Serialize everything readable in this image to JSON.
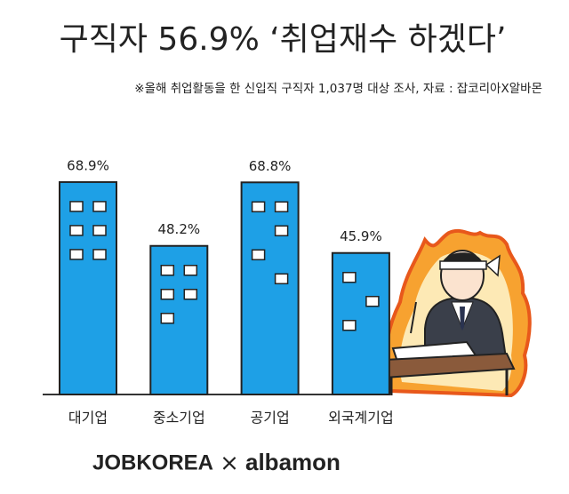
{
  "chart_data": {
    "type": "bar",
    "title": "구직자 56.9% ‘취업재수 하겠다’",
    "subtitle": "※올해 취업활동을 한 신입직 구직자 1,037명 대상 조사, 자료 : 잡코리아X알바몬",
    "categories": [
      "대기업",
      "중소기업",
      "공기업",
      "외국계기업"
    ],
    "values": [
      68.9,
      48.2,
      68.8,
      45.9
    ],
    "value_labels": [
      "68.9%",
      "48.2%",
      "68.8%",
      "45.9%"
    ],
    "color": "#1ea0e6"
  },
  "footer": {
    "left": "JOBKOREA",
    "separator": "×",
    "right": "albamon"
  }
}
